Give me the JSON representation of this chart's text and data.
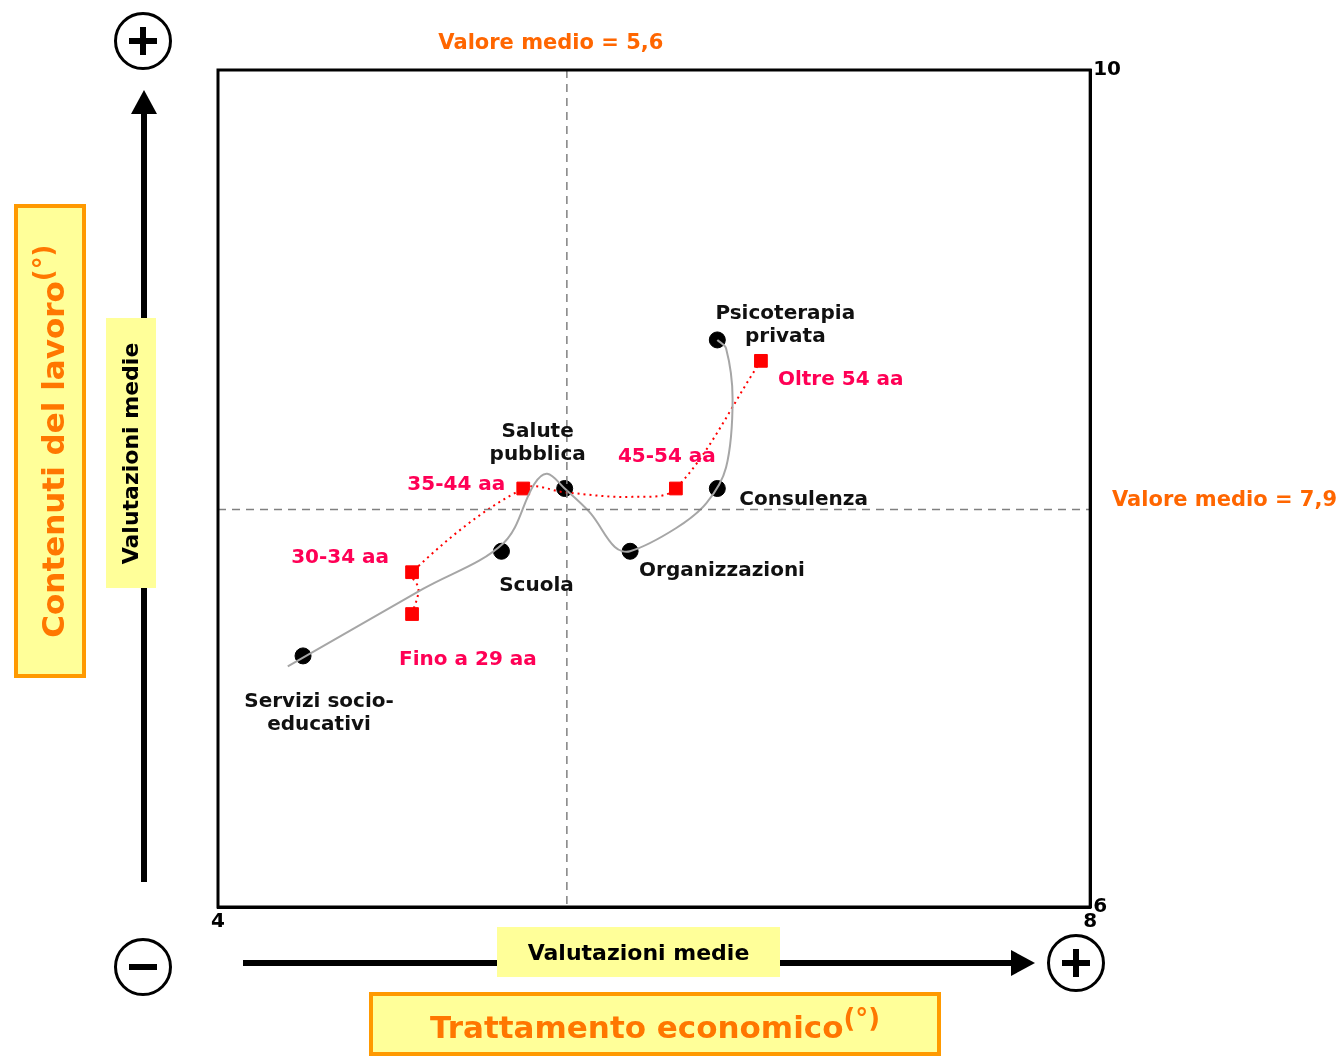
{
  "chart_data": {
    "type": "scatter",
    "xlabel": "Trattamento economico$^{(°)}$",
    "ylabel": "Contenuti del lavoro$^{(°)}$",
    "xlim": [
      4,
      8
    ],
    "ylim": [
      6,
      10
    ],
    "xticks": [
      4,
      8
    ],
    "yticks": [
      6,
      10
    ],
    "ref_lines": [
      {
        "axis": "x",
        "value": 5.6,
        "label": "Valore medio = 5,6",
        "color": "#808080",
        "line_style": "dashed"
      },
      {
        "axis": "y",
        "value": 7.9,
        "label": "Valore medio = 7,9",
        "color": "#808080",
        "line_style": "dashed"
      }
    ],
    "annotations": [
      "Valutazioni medie",
      "Valutazioni medie"
    ],
    "series": [
      {
        "type": "line",
        "color": "#a6a6a6",
        "marker": "none",
        "line_style": "solid",
        "x": [
          4.32,
          4.94,
          5.31,
          5.45,
          5.51,
          5.59,
          5.71,
          5.82,
          5.89,
          6.1,
          6.24,
          6.33,
          6.36,
          6.33,
          6.29
        ],
        "values": [
          7.15,
          7.52,
          7.74,
          8.02,
          8.07,
          8.0,
          7.88,
          7.72,
          7.7,
          7.81,
          7.93,
          8.1,
          8.43,
          8.67,
          8.71
        ]
      },
      {
        "type": "line",
        "color": "#ff0000",
        "marker": "none",
        "line_style": "dotted",
        "x": [
          4.89,
          4.92,
          4.89,
          5.4,
          5.6,
          5.9,
          6.1,
          6.49
        ],
        "values": [
          7.4,
          7.52,
          7.6,
          8.0,
          7.98,
          7.96,
          8.0,
          8.61
        ]
      },
      {
        "type": "scatter",
        "name": "Psicoterapia privata",
        "color": "#000000",
        "marker": "circle",
        "x": [
          6.29
        ],
        "values": [
          8.71
        ]
      },
      {
        "type": "scatter",
        "name": "Salute pubblica",
        "color": "#000000",
        "marker": "circle",
        "x": [
          5.59
        ],
        "values": [
          8.0
        ]
      },
      {
        "type": "scatter",
        "name": "Consulenza",
        "color": "#000000",
        "marker": "circle",
        "x": [
          6.29
        ],
        "values": [
          8.0
        ]
      },
      {
        "type": "scatter",
        "name": "Organizzazioni",
        "color": "#000000",
        "marker": "circle",
        "x": [
          5.89
        ],
        "values": [
          7.7
        ]
      },
      {
        "type": "scatter",
        "name": "Scuola",
        "color": "#000000",
        "marker": "circle",
        "x": [
          5.3
        ],
        "values": [
          7.7
        ]
      },
      {
        "type": "scatter",
        "name": "Servizi socio-educativi",
        "color": "#000000",
        "marker": "circle",
        "x": [
          4.39
        ],
        "values": [
          7.2
        ]
      },
      {
        "type": "scatter",
        "name": "Fino a 29 aa",
        "color": "#ff0000",
        "marker": "square",
        "x": [
          4.89
        ],
        "values": [
          7.4
        ]
      },
      {
        "type": "scatter",
        "name": "30-34 aa",
        "color": "#ff0000",
        "marker": "square",
        "x": [
          4.89
        ],
        "values": [
          7.6
        ]
      },
      {
        "type": "scatter",
        "name": "35-44 aa",
        "color": "#ff0000",
        "marker": "square",
        "x": [
          5.4
        ],
        "values": [
          8.0
        ]
      },
      {
        "type": "scatter",
        "name": "45-54 aa",
        "color": "#ff0000",
        "marker": "square",
        "x": [
          6.1
        ],
        "values": [
          8.0
        ]
      },
      {
        "type": "scatter",
        "name": "Oltre 54 aa",
        "color": "#ff0000",
        "marker": "square",
        "x": [
          6.49
        ],
        "values": [
          8.61
        ]
      }
    ]
  }
}
